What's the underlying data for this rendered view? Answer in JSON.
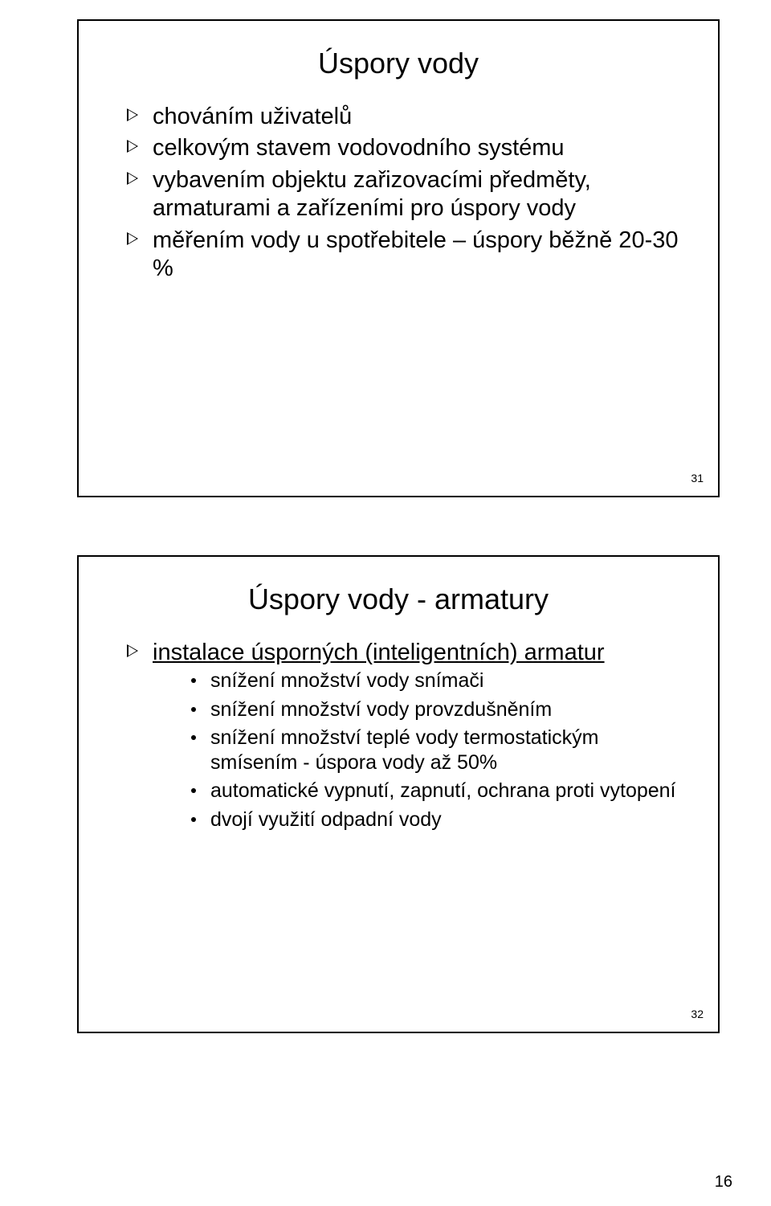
{
  "slide1": {
    "title": "Úspory vody",
    "items": [
      "chováním uživatelů",
      "celkovým stavem vodovodního systému",
      "vybavením objektu zařizovacími předměty, armaturami a zařízeními pro úspory vody",
      "měřením vody u spotřebitele – úspory běžně 20-30 %"
    ],
    "slide_number": "31"
  },
  "slide2": {
    "title": "Úspory vody - armatury",
    "main_item": "instalace úsporných (inteligentních) armatur",
    "sub_items": [
      "snížení množství vody snímači",
      "snížení množství vody provzdušněním",
      "snížení množství teplé vody termostatickým smísením - úspora vody až 50%",
      "automatické vypnutí, zapnutí, ochrana proti vytopení",
      "dvojí využití odpadní vody"
    ],
    "slide_number": "32"
  },
  "page_number": "16",
  "colors": {
    "text": "#000000",
    "background": "#ffffff",
    "border": "#000000"
  },
  "fonts": {
    "title_size_pt": 27,
    "body_size_pt": 22,
    "sub_size_pt": 19,
    "slidenum_size_pt": 11,
    "pagenum_size_pt": 15
  }
}
